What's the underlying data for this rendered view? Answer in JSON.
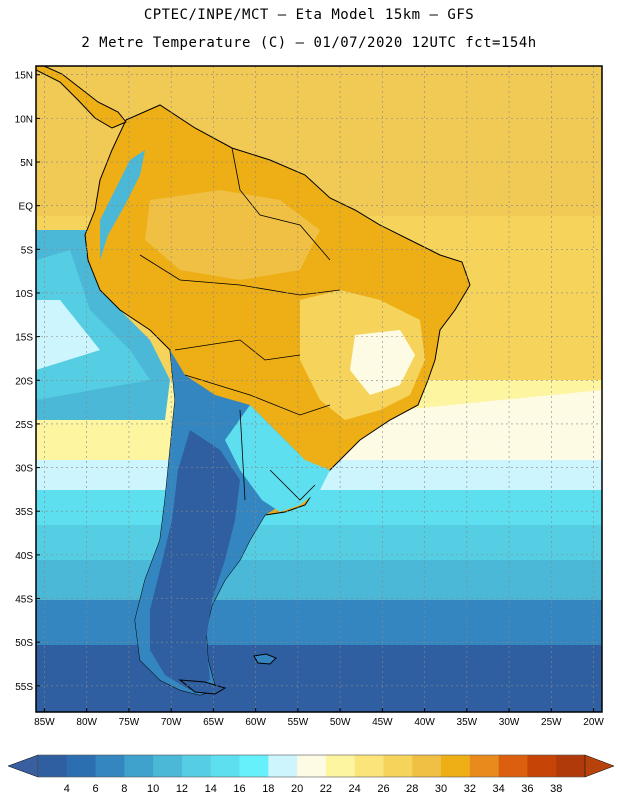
{
  "header": {
    "line1": "CPTEC/INPE/MCT –  Eta Model 15km – GFS",
    "line2": "2 Metre Temperature (C) – 01/07/2020 12UTC fct=154h"
  },
  "map": {
    "lat_ticks": [
      "15N",
      "10N",
      "5N",
      "EQ",
      "5S",
      "10S",
      "15S",
      "20S",
      "25S",
      "30S",
      "35S",
      "40S",
      "45S",
      "50S",
      "55S"
    ],
    "lon_ticks": [
      "85W",
      "80W",
      "75W",
      "70W",
      "65W",
      "60W",
      "55W",
      "50W",
      "45W",
      "40W",
      "35W",
      "30W",
      "25W",
      "20W"
    ],
    "lon_range": [
      -86,
      -19
    ],
    "lat_range": [
      -58,
      16
    ]
  },
  "colorbar": {
    "labels": [
      "4",
      "6",
      "8",
      "10",
      "12",
      "14",
      "16",
      "18",
      "20",
      "22",
      "24",
      "26",
      "28",
      "30",
      "32",
      "34",
      "36",
      "38"
    ],
    "colors": [
      "#2f5fa0",
      "#2c6fb0",
      "#3386c0",
      "#3ea2cc",
      "#4bb8d8",
      "#55cde3",
      "#5ddfef",
      "#66f0fb",
      "#cdf5fd",
      "#fdfbe4",
      "#fdf5a0",
      "#fbe57a",
      "#f6d45c",
      "#efc043",
      "#edae16",
      "#e88b1c",
      "#dc5f10",
      "#c64406",
      "#b03a0a"
    ],
    "under_color": "#3a5fa0",
    "over_color": "#b8420c"
  }
}
